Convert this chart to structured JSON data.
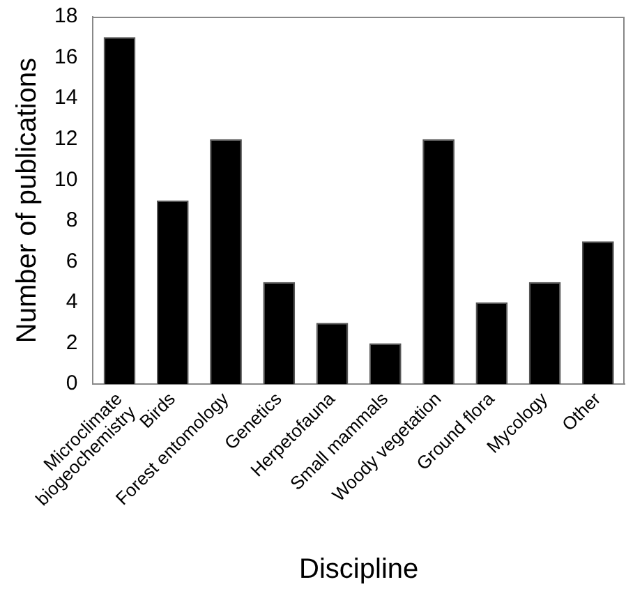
{
  "chart_data": {
    "type": "bar",
    "xlabel": "Discipline",
    "ylabel": "Number of publications",
    "categories": [
      "Microclimate\nbiogeochemistry",
      "Birds",
      "Forest entomology",
      "Genetics",
      "Herpetofauna",
      "Small mammals",
      "Woody vegetation",
      "Ground flora",
      "Mycology",
      "Other"
    ],
    "values": [
      17,
      9,
      12,
      5,
      3,
      2,
      12,
      4,
      5,
      7
    ],
    "color": "#000000",
    "ylim": [
      0,
      18
    ],
    "yticks": [
      0,
      2,
      4,
      6,
      8,
      10,
      12,
      14,
      16,
      18
    ],
    "grid": false,
    "legend": false
  }
}
